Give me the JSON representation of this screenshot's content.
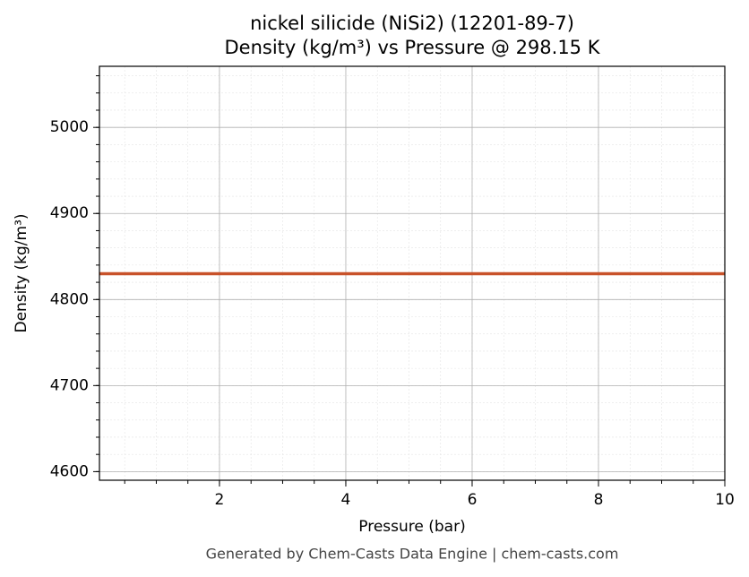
{
  "chart_data": {
    "type": "line",
    "title": "nickel silicide (NiSi2) (12201-89-7)",
    "subtitle": "Density (kg/m³) vs Pressure @ 298.15 K",
    "x_label": "Pressure (bar)",
    "y_label": "Density (kg/m³)",
    "x": [
      0.1,
      10
    ],
    "values": [
      4830,
      4830
    ],
    "color": "#c8522a",
    "xlim": [
      0.1,
      10
    ],
    "xticks": [
      2,
      4,
      6,
      8,
      10
    ],
    "ylim": [
      4590,
      5071
    ],
    "yticks": [
      4600,
      4700,
      4800,
      4900,
      5000
    ],
    "grid": true,
    "minor_grid": true
  },
  "footer": "Generated by Chem-Casts Data Engine | chem-casts.com"
}
